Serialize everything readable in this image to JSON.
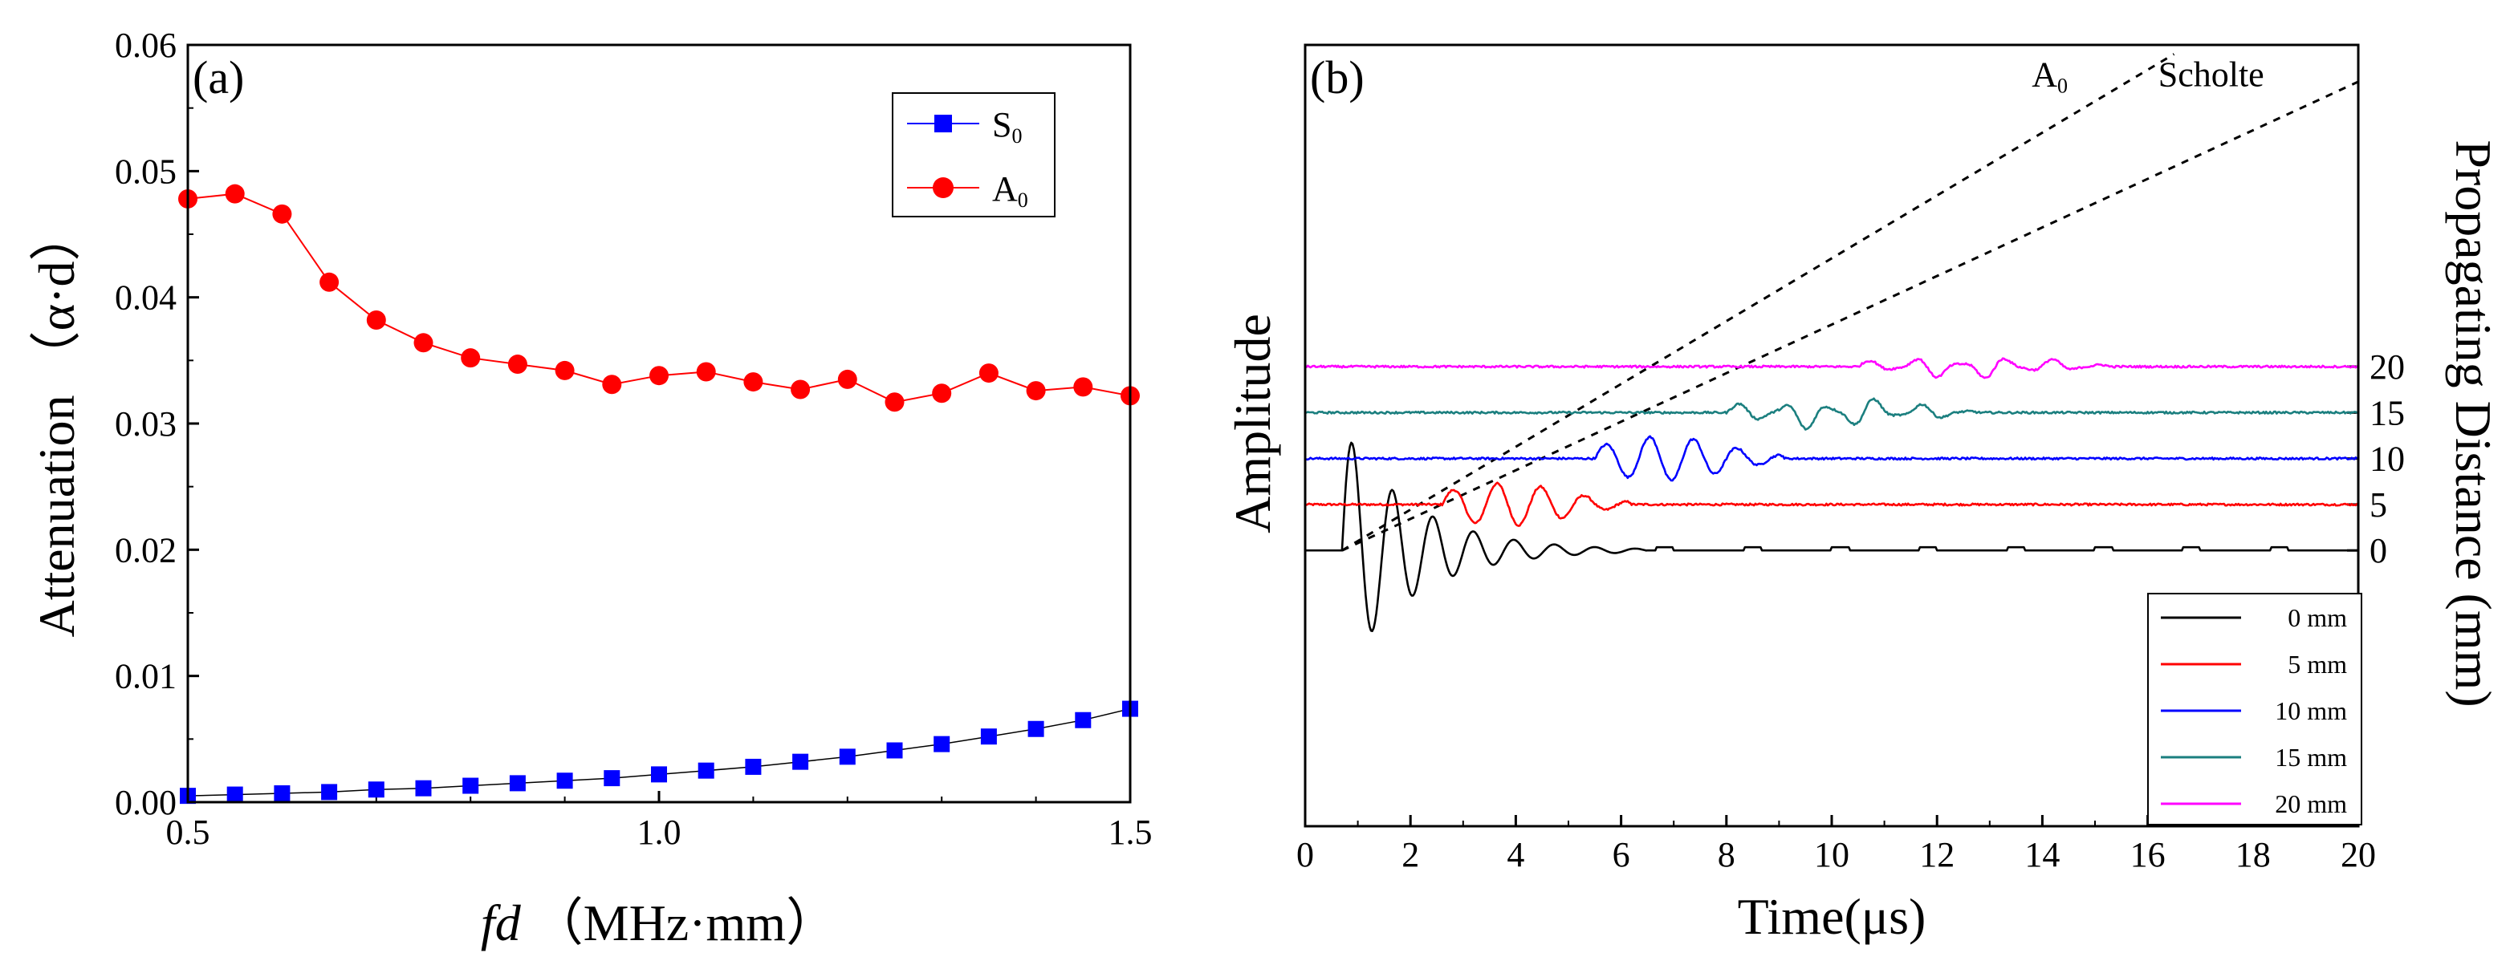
{
  "chart_data": [
    {
      "id": "a",
      "type": "line",
      "panel_label": "(a)",
      "xlabel_italic": "fd",
      "xlabel_unit": "（MHz·mm）",
      "ylabel": "Attenuation （α·d）",
      "xlim": [
        0.5,
        1.5
      ],
      "ylim": [
        0.0,
        0.06
      ],
      "xticks": [
        "0.5",
        "1.0",
        "1.5"
      ],
      "xtick_values": [
        0.5,
        1.0,
        1.5
      ],
      "yticks": [
        "0.00",
        "0.01",
        "0.02",
        "0.03",
        "0.04",
        "0.05",
        "0.06"
      ],
      "ytick_values": [
        0.0,
        0.01,
        0.02,
        0.03,
        0.04,
        0.05,
        0.06
      ],
      "legend_position": "top-right",
      "series": [
        {
          "name": "S",
          "subscript": "0",
          "color": "#0000ff",
          "marker": "square",
          "x": [
            0.5,
            0.55,
            0.6,
            0.65,
            0.7,
            0.75,
            0.8,
            0.85,
            0.9,
            0.95,
            1.0,
            1.05,
            1.1,
            1.15,
            1.2,
            1.25,
            1.3,
            1.35,
            1.4,
            1.45,
            1.5
          ],
          "y": [
            0.0005,
            0.0006,
            0.0007,
            0.0008,
            0.001,
            0.0011,
            0.0013,
            0.0015,
            0.0017,
            0.0019,
            0.0022,
            0.0025,
            0.0028,
            0.0032,
            0.0036,
            0.0041,
            0.0046,
            0.0052,
            0.0058,
            0.0065,
            0.0074
          ]
        },
        {
          "name": "A",
          "subscript": "0",
          "color": "#ff0000",
          "marker": "circle",
          "x": [
            0.5,
            0.55,
            0.6,
            0.65,
            0.7,
            0.75,
            0.8,
            0.85,
            0.9,
            0.95,
            1.0,
            1.05,
            1.1,
            1.15,
            1.2,
            1.25,
            1.3,
            1.35,
            1.4,
            1.45,
            1.5
          ],
          "y": [
            0.0478,
            0.0482,
            0.0466,
            0.0412,
            0.0382,
            0.0364,
            0.0352,
            0.0347,
            0.0342,
            0.0331,
            0.0338,
            0.0341,
            0.0333,
            0.0327,
            0.0335,
            0.0317,
            0.0324,
            0.034,
            0.0326,
            0.0329,
            0.0322
          ]
        }
      ]
    },
    {
      "id": "b",
      "type": "line",
      "panel_label": "(b)",
      "xlabel": "Time(μs)",
      "ylabel_left": "Amplitude",
      "ylabel_right": "Propagating Distance (mm)",
      "xlim": [
        0,
        20
      ],
      "ylim_right": [
        -30,
        55
      ],
      "xticks": [
        "0",
        "2",
        "4",
        "6",
        "8",
        "10",
        "12",
        "14",
        "16",
        "18",
        "20"
      ],
      "xtick_values": [
        0,
        2,
        4,
        6,
        8,
        10,
        12,
        14,
        16,
        18,
        20
      ],
      "right_ticks": [
        "0",
        "5",
        "10",
        "15",
        "20"
      ],
      "right_tick_values": [
        0,
        5,
        10,
        15,
        20
      ],
      "legend_position": "bottom-right",
      "annotations": [
        {
          "text": "A",
          "subscript": "0",
          "x": 13.8,
          "y": 50.5
        },
        {
          "text": "Scholte",
          "x": 16.2,
          "y": 50.5
        }
      ],
      "dashed_lines": [
        {
          "name": "A0-line",
          "x": [
            0.7,
            16.5
          ],
          "y": [
            0,
            54
          ]
        },
        {
          "name": "Scholte-line",
          "x": [
            0.7,
            20
          ],
          "y": [
            0,
            51
          ]
        }
      ],
      "series": [
        {
          "name": "0 mm",
          "offset": 0,
          "color": "#000000",
          "arrival": 0.7,
          "center": 1.3,
          "duration": 5.8,
          "amplitude": 13.5,
          "freq": 1.3,
          "decay": 0.55
        },
        {
          "name": "5 mm",
          "offset": 5,
          "color": "#ff0000",
          "arrival": 2.6,
          "center": 3.8,
          "duration": 3.6,
          "amplitude": 2.3,
          "freq": 1.2,
          "decay": 0.5
        },
        {
          "name": "10 mm",
          "offset": 10,
          "color": "#0000ff",
          "arrival": 5.5,
          "center": 6.8,
          "duration": 3.6,
          "amplitude": 2.4,
          "freq": 1.2,
          "decay": 0.55
        },
        {
          "name": "15 mm",
          "offset": 15,
          "color": "#1b7f7f",
          "arrival": 8.0,
          "center": 10.0,
          "duration": 4.8,
          "amplitude": 1.9,
          "freq": 1.15,
          "decay": 0.3
        },
        {
          "name": "20 mm",
          "offset": 20,
          "color": "#ff00ff",
          "arrival": 10.5,
          "center": 12.6,
          "duration": 4.8,
          "amplitude": 1.4,
          "freq": 1.15,
          "decay": 0.3
        }
      ]
    }
  ]
}
